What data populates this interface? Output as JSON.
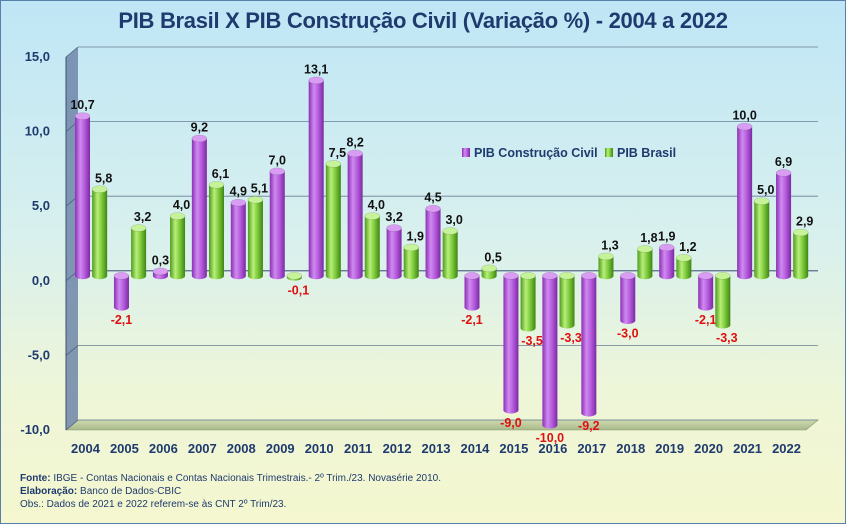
{
  "chart_data": {
    "type": "bar",
    "title": "PIB Brasil X PIB Construção Civil (Variação %) - 2004 a 2022",
    "categories": [
      "2004",
      "2005",
      "2006",
      "2007",
      "2008",
      "2009",
      "2010",
      "2011",
      "2012",
      "2013",
      "2014",
      "2015",
      "2016",
      "2017",
      "2018",
      "2019",
      "2020",
      "2021",
      "2022"
    ],
    "series": [
      {
        "name": "PIB Construção Civil",
        "values": [
          10.7,
          -2.1,
          0.3,
          9.2,
          4.9,
          7.0,
          13.1,
          8.2,
          3.2,
          4.5,
          -2.1,
          -9.0,
          -10.0,
          -9.2,
          -3.0,
          1.9,
          -2.1,
          10.0,
          6.9
        ],
        "labels": [
          "10,7",
          "-2,1",
          "0,3",
          "9,2",
          "4,9",
          "7,0",
          "13,1",
          "8,2",
          "3,2",
          "4,5",
          "-2,1",
          "-9,0",
          "-10,0",
          "-9,2",
          "-3,0",
          "1,9",
          "-2,1",
          "10,0",
          "6,9"
        ],
        "color": "#b45adc"
      },
      {
        "name": "PIB Brasil",
        "values": [
          5.8,
          3.2,
          4.0,
          6.1,
          5.1,
          -0.1,
          7.5,
          4.0,
          1.9,
          3.0,
          0.5,
          -3.5,
          -3.3,
          1.3,
          1.8,
          1.2,
          -3.3,
          5.0,
          2.9
        ],
        "labels": [
          "5,8",
          "3,2",
          "4,0",
          "6,1",
          "5,1",
          "-0,1",
          "7,5",
          "4,0",
          "1,9",
          "3,0",
          "0,5",
          "-3,5",
          "-3,3",
          "1,3",
          "1,8",
          "1,2",
          "-3,3",
          "5,0",
          "2,9"
        ],
        "color": "#7cc93a"
      }
    ],
    "ylim": [
      -10,
      15
    ],
    "yticks": [
      15,
      10,
      5,
      0,
      -5,
      -10
    ],
    "ytick_labels": [
      "15,0",
      "10,0",
      "5,0",
      "0,0",
      "-5,0",
      "-10,0"
    ],
    "grid": true,
    "legend_position": "top-right"
  },
  "footer": {
    "fonte_label": "Fonte:",
    "fonte_text": " IBGE - Contas Nacionais e Contas Nacionais Trimestrais.- 2º Trim./23. Novasérie 2010.",
    "elaboracao_label": "Elaboração:",
    "elaboracao_text": " Banco de Dados-CBIC",
    "obs_text": "Obs.: Dados de 2021 e 2022 referem-se às CNT 2º Trim/23."
  }
}
